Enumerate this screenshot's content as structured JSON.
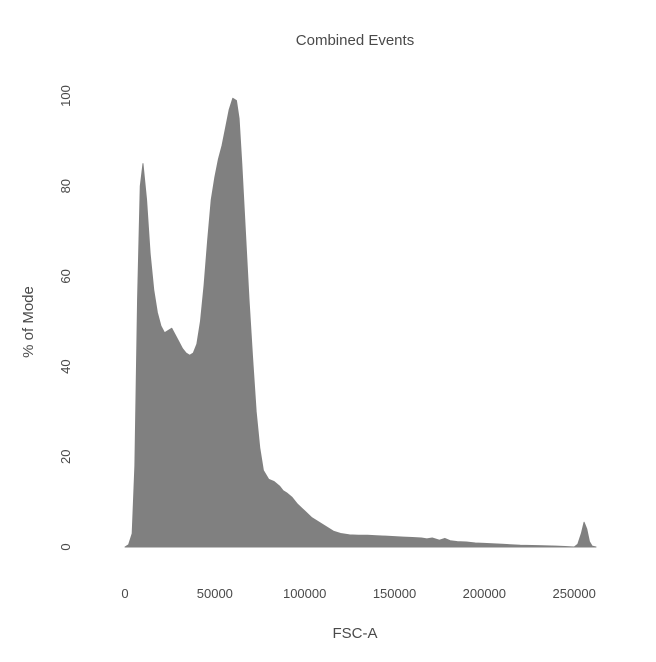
{
  "chart_data": {
    "type": "area",
    "title": "Combined Events",
    "xlabel": "FSC-A",
    "ylabel": "% of Mode",
    "xlim": [
      0,
      262144
    ],
    "ylim": [
      0,
      100
    ],
    "x_ticks": [
      {
        "value": 0,
        "label": "0"
      },
      {
        "value": 50000,
        "label": "50000"
      },
      {
        "value": 100000,
        "label": "100000"
      },
      {
        "value": 150000,
        "label": "150000"
      },
      {
        "value": 200000,
        "label": "200000"
      },
      {
        "value": 250000,
        "label": "250000"
      }
    ],
    "y_ticks": [
      {
        "value": 0,
        "label": "0"
      },
      {
        "value": 20,
        "label": "20"
      },
      {
        "value": 40,
        "label": "40"
      },
      {
        "value": 60,
        "label": "60"
      },
      {
        "value": 80,
        "label": "80"
      },
      {
        "value": 100,
        "label": "100"
      }
    ],
    "grid": false,
    "fill_color": "#808080",
    "series": [
      {
        "x": [
          0,
          2000,
          4000,
          5500,
          7000,
          8500,
          10000,
          12000,
          14000,
          16000,
          18000,
          20000,
          22000,
          24000,
          26000,
          28000,
          30000,
          32000,
          34000,
          36000,
          38000,
          40000,
          42000,
          44000,
          46000,
          48000,
          50000,
          52000,
          54000,
          56000,
          58000,
          60000,
          62000,
          63500,
          65000,
          67000,
          69000,
          71000,
          73000,
          75000,
          77000,
          80000,
          83000,
          86000,
          88000,
          90000,
          93000,
          96000,
          100000,
          104000,
          108000,
          112000,
          116000,
          120000,
          125000,
          130000,
          135000,
          140000,
          145000,
          150000,
          155000,
          160000,
          165000,
          168000,
          171000,
          175000,
          178000,
          181000,
          185000,
          190000,
          195000,
          200000,
          210000,
          220000,
          230000,
          240000,
          245000,
          250000,
          252000,
          254000,
          255500,
          257000,
          258500,
          260000,
          262144
        ],
        "y": [
          0,
          0.5,
          3,
          18,
          55,
          80,
          85,
          77,
          65,
          57,
          52,
          49,
          47.5,
          48,
          48.5,
          47,
          45.5,
          44,
          43,
          42.5,
          43,
          45,
          50,
          58,
          68,
          77,
          82,
          86,
          89,
          93,
          97,
          99.5,
          99,
          95,
          85,
          70,
          55,
          42,
          30,
          22,
          17,
          15,
          14.5,
          13.5,
          12.5,
          12,
          11,
          9.5,
          8,
          6.5,
          5.5,
          4.5,
          3.5,
          3,
          2.7,
          2.6,
          2.6,
          2.5,
          2.4,
          2.3,
          2.2,
          2.1,
          2,
          1.8,
          2,
          1.5,
          1.9,
          1.4,
          1.2,
          1.1,
          0.9,
          0.8,
          0.6,
          0.4,
          0.3,
          0.2,
          0.1,
          0,
          0.6,
          3,
          5.5,
          4,
          1.2,
          0.2,
          0
        ]
      }
    ]
  }
}
